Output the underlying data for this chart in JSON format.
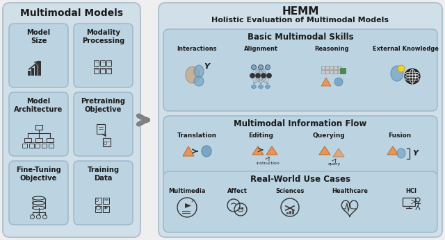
{
  "bg_color": "#efefef",
  "left_panel_color": "#d0dfe8",
  "left_panel_border": "#b0c4d0",
  "box_color": "#bcd3e2",
  "box_border": "#9ab5c8",
  "right_panel_color": "#d0dfe8",
  "right_panel_border": "#b0c4d0",
  "section_color": "#bcd3e2",
  "section_border": "#9ab5c8",
  "orange": "#e8955a",
  "blue_circle": "#7ba7c7",
  "dark": "#1a1a1a",
  "gray_arrow": "#808080",
  "left_title": "Multimodal Models",
  "left_boxes": [
    {
      "label": "Model\nSize",
      "row": 0,
      "col": 0
    },
    {
      "label": "Modality\nProcessing",
      "row": 0,
      "col": 1
    },
    {
      "label": "Model\nArchitecture",
      "row": 1,
      "col": 0
    },
    {
      "label": "Pretraining\nObjective",
      "row": 1,
      "col": 1
    },
    {
      "label": "Fine-Tuning\nObjective",
      "row": 2,
      "col": 0
    },
    {
      "label": "Training\nData",
      "row": 2,
      "col": 1
    }
  ],
  "right_title_line1": "HEMM",
  "right_title_line2": "Holistic Evaluation of Multimodal Models",
  "section1_title": "Basic Multimodal Skills",
  "section1_cats": [
    "Interactions",
    "Alignment",
    "Reasoning",
    "External Knowledge"
  ],
  "section2_title": "Multimodal Information Flow",
  "section2_cats": [
    "Translation",
    "Editing",
    "Querying",
    "Fusion"
  ],
  "section2_sub": [
    "",
    "instruction",
    "query",
    ""
  ],
  "section3_title": "Real-World Use Cases",
  "section3_cats": [
    "Multimedia",
    "Affect",
    "Sciences",
    "Healthcare",
    "HCI"
  ]
}
